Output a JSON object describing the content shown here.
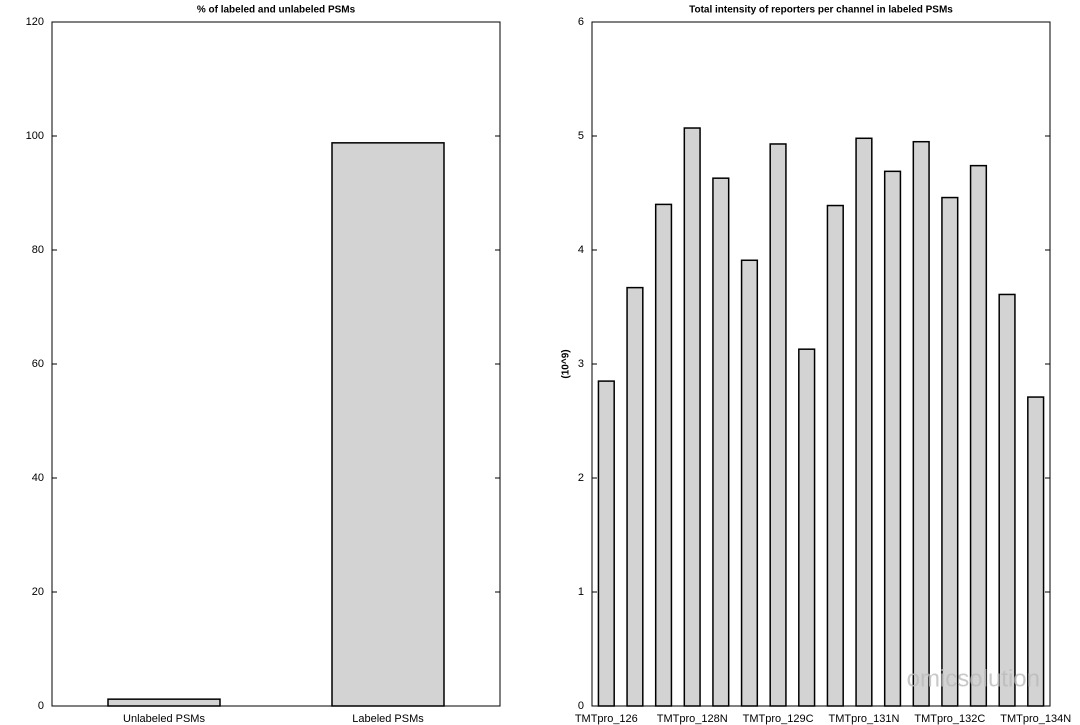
{
  "chart_data": [
    {
      "type": "bar",
      "title": "% of labeled and unlabeled PSMs",
      "categories": [
        "Unlabeled PSMs",
        "Labeled PSMs"
      ],
      "values": [
        1.2,
        98.8
      ],
      "color": "#d3d3d3",
      "ylim": [
        0,
        120
      ],
      "yticks": [
        0,
        20,
        40,
        60,
        80,
        100,
        120
      ],
      "grid": false
    },
    {
      "type": "bar",
      "title": "Total intensity of reporters per channel in labeled PSMs",
      "ylabel": "(10^9)",
      "categories": [
        "TMTpro_126",
        null,
        null,
        "TMTpro_128N",
        null,
        null,
        "TMTpro_129C",
        null,
        null,
        "TMTpro_131N",
        null,
        null,
        "TMTpro_132C",
        null,
        null,
        "TMTpro_134N"
      ],
      "values": [
        2.85,
        3.67,
        4.4,
        5.07,
        4.63,
        3.91,
        4.93,
        3.13,
        4.39,
        4.98,
        4.69,
        4.95,
        4.46,
        4.74,
        3.61,
        2.71
      ],
      "color": "#d3d3d3",
      "ylim": [
        0,
        6
      ],
      "yticks": [
        0,
        1,
        2,
        3,
        4,
        5,
        6
      ],
      "grid": false
    }
  ],
  "watermark": "omicsolution"
}
